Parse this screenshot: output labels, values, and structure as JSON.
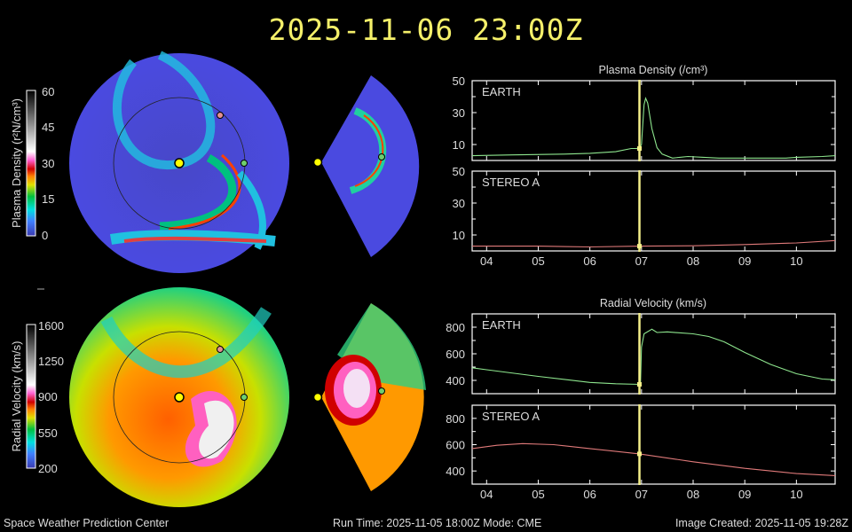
{
  "header": {
    "title": "2025-11-06 23:00Z"
  },
  "footer": {
    "left": "Space Weather Prediction Center",
    "center": "Run Time: 2025-11-05 18:00Z  Mode: CME",
    "right": "Image Created: 2025-11-05 19:28Z"
  },
  "colorbars": [
    {
      "label": "Plasma Density (r²N/cm³)",
      "ticks": [
        "60",
        "45",
        "30",
        "15",
        "0"
      ],
      "range": [
        0,
        60
      ]
    },
    {
      "label": "Radial Velocity (km/s)",
      "ticks": [
        "1600",
        "1250",
        "900",
        "550",
        "200"
      ],
      "range": [
        200,
        1600
      ]
    }
  ],
  "colors": {
    "title": "#f5f06a",
    "earth": "#8ee68e",
    "stereo_a": "#e07a7a",
    "current_time": "#f5f08a",
    "earth_marker": "#6fcf6f",
    "stereo_marker": "#e59090",
    "sun": "#ffff00"
  },
  "chart_data": [
    {
      "type": "line",
      "title": "Plasma Density (/cm³)",
      "xlim": [
        3.72,
        10.75
      ],
      "x_ticks": [
        "04",
        "05",
        "06",
        "07",
        "08",
        "09",
        "10"
      ],
      "x_tick_values": [
        4,
        5,
        6,
        7,
        8,
        9,
        10
      ],
      "current_time": 6.96,
      "panels": [
        {
          "label": "EARTH",
          "ylim": [
            0,
            50
          ],
          "y_ticks": [
            10,
            30,
            50
          ],
          "color": "#8ee68e",
          "x": [
            3.72,
            4.5,
            5.5,
            6.0,
            6.5,
            6.8,
            6.96,
            7.0,
            7.05,
            7.08,
            7.12,
            7.2,
            7.3,
            7.4,
            7.6,
            7.9,
            8.2,
            8.5,
            9.0,
            9.8,
            10.0,
            10.5,
            10.75
          ],
          "y": [
            3,
            3.5,
            4,
            4.5,
            5.5,
            7.5,
            7.5,
            10,
            35,
            39,
            36,
            20,
            8,
            4,
            1.5,
            2.5,
            2,
            1.5,
            1.5,
            1.5,
            2,
            2.5,
            3
          ]
        },
        {
          "label": "STEREO A",
          "ylim": [
            0,
            50
          ],
          "y_ticks": [
            10,
            30,
            50
          ],
          "color": "#e07a7a",
          "x": [
            3.72,
            5.0,
            6.0,
            7.0,
            8.0,
            9.0,
            10.0,
            10.75
          ],
          "y": [
            3,
            3,
            2.5,
            3,
            3.2,
            4,
            5,
            6.5
          ]
        }
      ]
    },
    {
      "type": "line",
      "title": "Radial Velocity (km/s)",
      "xlim": [
        3.72,
        10.75
      ],
      "x_ticks": [
        "04",
        "05",
        "06",
        "07",
        "08",
        "09",
        "10"
      ],
      "x_tick_values": [
        4,
        5,
        6,
        7,
        8,
        9,
        10
      ],
      "current_time": 6.96,
      "panels": [
        {
          "label": "EARTH",
          "ylim": [
            300,
            900
          ],
          "y_ticks": [
            400,
            600,
            800
          ],
          "color": "#8ee68e",
          "x": [
            3.72,
            4.0,
            5.0,
            6.0,
            6.5,
            6.96,
            6.98,
            7.0,
            7.05,
            7.2,
            7.3,
            7.5,
            8.0,
            8.3,
            8.6,
            9.0,
            9.5,
            10.0,
            10.5,
            10.75
          ],
          "y": [
            495,
            480,
            430,
            385,
            375,
            370,
            380,
            650,
            750,
            785,
            760,
            765,
            750,
            730,
            690,
            610,
            520,
            450,
            410,
            405
          ]
        },
        {
          "label": "STEREO A",
          "ylim": [
            300,
            900
          ],
          "y_ticks": [
            400,
            600,
            800
          ],
          "color": "#e07a7a",
          "x": [
            3.72,
            4.2,
            4.7,
            5.3,
            6.0,
            6.96,
            8.0,
            9.0,
            10.0,
            10.75
          ],
          "y": [
            570,
            595,
            608,
            600,
            570,
            530,
            470,
            420,
            380,
            365
          ]
        }
      ]
    }
  ]
}
